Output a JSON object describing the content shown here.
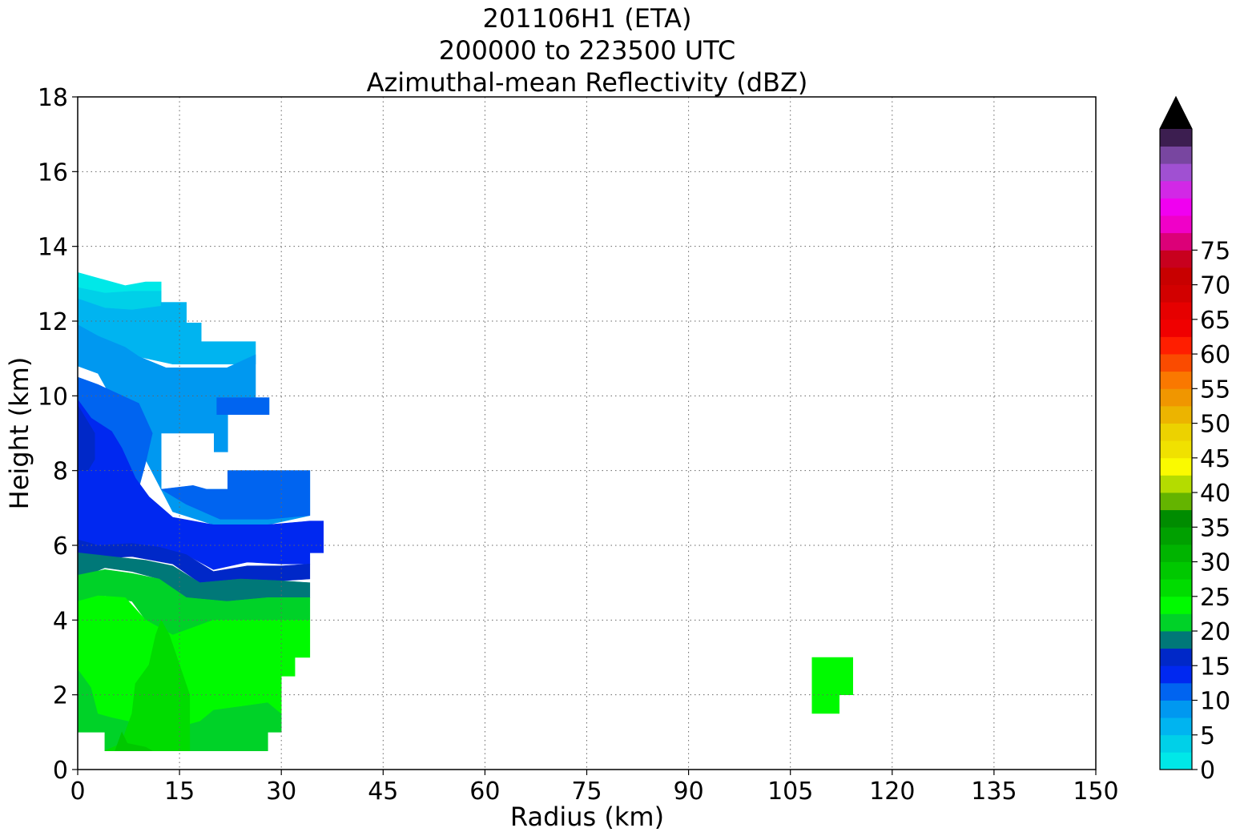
{
  "chart_data": {
    "type": "heatmap",
    "title_lines": [
      "201106H1 (ETA)",
      "200000 to 223500 UTC",
      "Azimuthal-mean Reflectivity (dBZ)"
    ],
    "xlabel": "Radius (km)",
    "ylabel": "Height (km)",
    "xlim": [
      0,
      150
    ],
    "ylim": [
      0,
      18
    ],
    "x_ticks": [
      0,
      15,
      30,
      45,
      60,
      75,
      90,
      105,
      120,
      135,
      150
    ],
    "y_ticks": [
      0,
      2,
      4,
      6,
      8,
      10,
      12,
      14,
      16,
      18
    ],
    "grid": true,
    "colorbar": {
      "label_values": [
        0,
        5,
        10,
        15,
        20,
        25,
        30,
        35,
        40,
        45,
        50,
        55,
        60,
        65,
        70,
        75
      ],
      "levels_start": 0,
      "level_step": 2.5,
      "colors": [
        "#00e8e8",
        "#00d0e8",
        "#00b4f0",
        "#0098f0",
        "#0064f0",
        "#0028f0",
        "#0028c8",
        "#007878",
        "#00d228",
        "#00fa00",
        "#00dc00",
        "#00c800",
        "#00b400",
        "#00a000",
        "#008c00",
        "#64b400",
        "#b4dc00",
        "#fafa00",
        "#f0e100",
        "#ecd200",
        "#ecb400",
        "#f09600",
        "#fa7800",
        "#fa4b00",
        "#ff1e00",
        "#f00000",
        "#e60000",
        "#d20000",
        "#c80000",
        "#c8001e",
        "#dc0078",
        "#f000c8",
        "#f000f0",
        "#d228e6",
        "#a050d2",
        "#7846a0",
        "#3c1e50"
      ],
      "extend_color": "#000000"
    },
    "regions": [
      {
        "dbz": 1,
        "points": [
          [
            0,
            13.3
          ],
          [
            4,
            13.1
          ],
          [
            7,
            12.95
          ],
          [
            10,
            13.05
          ],
          [
            12.3,
            13.05
          ],
          [
            12.3,
            12.3
          ],
          [
            0,
            12.3
          ]
        ]
      },
      {
        "dbz": 3.5,
        "points": [
          [
            0,
            12.9
          ],
          [
            4,
            12.75
          ],
          [
            8,
            12.8
          ],
          [
            12.3,
            12.8
          ],
          [
            12.3,
            12.5
          ],
          [
            16,
            12.5
          ],
          [
            16,
            12.0
          ],
          [
            0,
            12.0
          ]
        ]
      },
      {
        "dbz": 6,
        "points": [
          [
            0,
            12.6
          ],
          [
            4,
            12.35
          ],
          [
            8,
            12.3
          ],
          [
            12.3,
            12.4
          ],
          [
            12.3,
            12.5
          ],
          [
            16,
            12.5
          ],
          [
            16,
            11.95
          ],
          [
            18.2,
            11.95
          ],
          [
            18.2,
            11.45
          ],
          [
            26.2,
            11.45
          ],
          [
            26.2,
            10.85
          ],
          [
            14,
            10.85
          ],
          [
            0,
            11.4
          ]
        ]
      },
      {
        "dbz": 8.5,
        "points": [
          [
            0,
            11.9
          ],
          [
            3,
            11.6
          ],
          [
            7,
            11.3
          ],
          [
            9,
            11.05
          ],
          [
            13,
            10.75
          ],
          [
            22,
            10.75
          ],
          [
            26.2,
            11.1
          ],
          [
            26.2,
            9.95
          ],
          [
            28.2,
            9.95
          ],
          [
            28.2,
            9.5
          ],
          [
            22.1,
            9.5
          ],
          [
            22.1,
            8.5
          ],
          [
            20.1,
            8.5
          ],
          [
            20.1,
            9.0
          ],
          [
            12.3,
            9.0
          ],
          [
            12.3,
            7.5
          ],
          [
            22.1,
            7.5
          ],
          [
            22.1,
            8.0
          ],
          [
            34.2,
            8.0
          ],
          [
            34.2,
            6.8
          ],
          [
            28,
            6.55
          ],
          [
            20,
            6.55
          ],
          [
            14,
            6.9
          ],
          [
            10,
            8.3
          ],
          [
            3,
            10.6
          ],
          [
            0,
            10.8
          ]
        ]
      },
      {
        "dbz": 11,
        "points": [
          [
            0,
            10.5
          ],
          [
            3,
            10.3
          ],
          [
            9,
            9.8
          ],
          [
            11,
            9.0
          ],
          [
            10,
            8.2
          ],
          [
            8.5,
            7.2
          ],
          [
            6,
            6.9
          ],
          [
            3,
            6.8
          ],
          [
            0,
            6.7
          ],
          [
            0,
            7.35
          ],
          [
            4,
            7.35
          ],
          [
            4,
            8.0
          ],
          [
            0,
            8.0
          ]
        ]
      },
      {
        "dbz": 11,
        "points": [
          [
            28.2,
            9.95
          ],
          [
            28.2,
            9.5
          ],
          [
            20.5,
            9.5
          ],
          [
            20.5,
            9.95
          ]
        ]
      },
      {
        "dbz": 11,
        "points": [
          [
            12.3,
            7.5
          ],
          [
            17,
            7.6
          ],
          [
            19,
            7.5
          ],
          [
            22.1,
            7.5
          ],
          [
            22.1,
            8.0
          ],
          [
            34.2,
            8.0
          ],
          [
            34.2,
            6.8
          ],
          [
            28,
            6.7
          ],
          [
            21,
            6.7
          ],
          [
            16,
            7.1
          ]
        ]
      },
      {
        "dbz": 13.5,
        "points": [
          [
            0,
            9.9
          ],
          [
            2,
            9.4
          ],
          [
            5,
            9.05
          ],
          [
            6.5,
            8.6
          ],
          [
            8.5,
            7.8
          ],
          [
            10.5,
            7.3
          ],
          [
            14,
            6.75
          ],
          [
            20,
            6.55
          ],
          [
            28,
            6.55
          ],
          [
            34.2,
            6.65
          ],
          [
            36.2,
            6.65
          ],
          [
            36.2,
            5.8
          ],
          [
            34.2,
            5.8
          ],
          [
            34.2,
            5.5
          ],
          [
            30,
            5.5
          ],
          [
            25,
            5.55
          ],
          [
            20,
            5.35
          ],
          [
            16,
            5.75
          ],
          [
            12,
            5.95
          ],
          [
            8,
            6.05
          ],
          [
            3,
            6.0
          ],
          [
            0,
            6.15
          ]
        ]
      },
      {
        "dbz": 16,
        "points": [
          [
            0,
            9.75
          ],
          [
            2.5,
            9.0
          ],
          [
            2.5,
            8.3
          ],
          [
            1.5,
            8.0
          ],
          [
            0,
            8.0
          ]
        ]
      },
      {
        "dbz": 16,
        "points": [
          [
            0,
            6.15
          ],
          [
            3,
            6.0
          ],
          [
            8,
            6.05
          ],
          [
            12,
            5.95
          ],
          [
            16,
            5.75
          ],
          [
            20,
            5.3
          ],
          [
            25,
            5.45
          ],
          [
            30,
            5.45
          ],
          [
            34.2,
            5.5
          ],
          [
            34.2,
            5.1
          ],
          [
            30,
            5.05
          ],
          [
            24,
            5.1
          ],
          [
            18,
            5.0
          ],
          [
            14,
            5.5
          ],
          [
            8,
            5.7
          ],
          [
            3,
            5.65
          ],
          [
            0,
            5.55
          ]
        ]
      },
      {
        "dbz": 18.5,
        "points": [
          [
            0,
            5.8
          ],
          [
            5,
            5.7
          ],
          [
            10,
            5.6
          ],
          [
            14,
            5.45
          ],
          [
            18,
            5.0
          ],
          [
            24,
            5.1
          ],
          [
            30,
            5.05
          ],
          [
            34.2,
            5.0
          ],
          [
            34.2,
            4.6
          ],
          [
            28,
            4.6
          ],
          [
            22,
            4.5
          ],
          [
            16,
            4.6
          ],
          [
            12,
            5.1
          ],
          [
            8,
            5.3
          ],
          [
            4,
            5.4
          ],
          [
            0,
            5.1
          ]
        ]
      },
      {
        "dbz": 21,
        "points": [
          [
            0,
            5.2
          ],
          [
            4,
            5.35
          ],
          [
            8,
            5.25
          ],
          [
            12,
            5.1
          ],
          [
            16,
            4.6
          ],
          [
            22,
            4.5
          ],
          [
            28,
            4.6
          ],
          [
            34.2,
            4.6
          ],
          [
            34.2,
            4.0
          ],
          [
            26,
            4.0
          ],
          [
            20,
            4.0
          ],
          [
            14,
            3.6
          ],
          [
            10,
            4.0
          ],
          [
            8,
            4.5
          ],
          [
            4,
            4.65
          ],
          [
            0,
            4.4
          ]
        ]
      },
      {
        "dbz": 21,
        "points": [
          [
            0,
            2.7
          ],
          [
            2,
            2.2
          ],
          [
            3,
            1.5
          ],
          [
            5,
            1.4
          ],
          [
            10,
            1.2
          ],
          [
            14,
            1.1
          ],
          [
            18,
            1.3
          ],
          [
            20,
            1.6
          ],
          [
            24,
            1.7
          ],
          [
            28,
            1.8
          ],
          [
            30,
            1.5
          ],
          [
            30,
            1.0
          ],
          [
            28,
            1.0
          ],
          [
            28,
            0.5
          ],
          [
            4,
            0.5
          ],
          [
            4,
            1.0
          ],
          [
            0,
            1.0
          ]
        ]
      },
      {
        "dbz": 23.5,
        "points": [
          [
            0,
            4.5
          ],
          [
            3,
            4.65
          ],
          [
            7,
            4.6
          ],
          [
            10,
            4.0
          ],
          [
            14,
            3.6
          ],
          [
            20,
            4.0
          ],
          [
            26,
            4.0
          ],
          [
            34.2,
            4.0
          ],
          [
            34.2,
            3.0
          ],
          [
            32,
            3.0
          ],
          [
            32,
            2.5
          ],
          [
            30,
            2.5
          ],
          [
            30,
            1.5
          ],
          [
            28,
            1.8
          ],
          [
            24,
            1.7
          ],
          [
            20,
            1.6
          ],
          [
            18,
            1.3
          ],
          [
            14,
            1.1
          ],
          [
            10,
            1.2
          ],
          [
            5,
            1.4
          ],
          [
            3,
            1.5
          ],
          [
            2,
            2.2
          ],
          [
            0,
            2.7
          ]
        ]
      },
      {
        "dbz": 23.5,
        "points": [
          [
            108.2,
            3.0
          ],
          [
            114.2,
            3.0
          ],
          [
            114.2,
            2.0
          ],
          [
            112.2,
            2.0
          ],
          [
            112.2,
            1.5
          ],
          [
            108.2,
            1.5
          ]
        ]
      },
      {
        "dbz": 26,
        "points": [
          [
            8,
            1.5
          ],
          [
            8.5,
            2.3
          ],
          [
            10.5,
            2.8
          ],
          [
            11.5,
            3.6
          ],
          [
            12.3,
            4.0
          ],
          [
            13.5,
            3.6
          ],
          [
            15,
            2.8
          ],
          [
            16.5,
            2.0
          ],
          [
            16.5,
            1.3
          ],
          [
            16.5,
            0.5
          ],
          [
            4,
            0.5
          ],
          [
            6.5,
            0.7
          ],
          [
            7,
            1.0
          ]
        ]
      },
      {
        "dbz": 28.5,
        "points": [
          [
            5.5,
            0.5
          ],
          [
            6.5,
            1.0
          ],
          [
            7.3,
            0.7
          ],
          [
            10,
            0.6
          ],
          [
            11,
            0.5
          ]
        ]
      }
    ]
  }
}
